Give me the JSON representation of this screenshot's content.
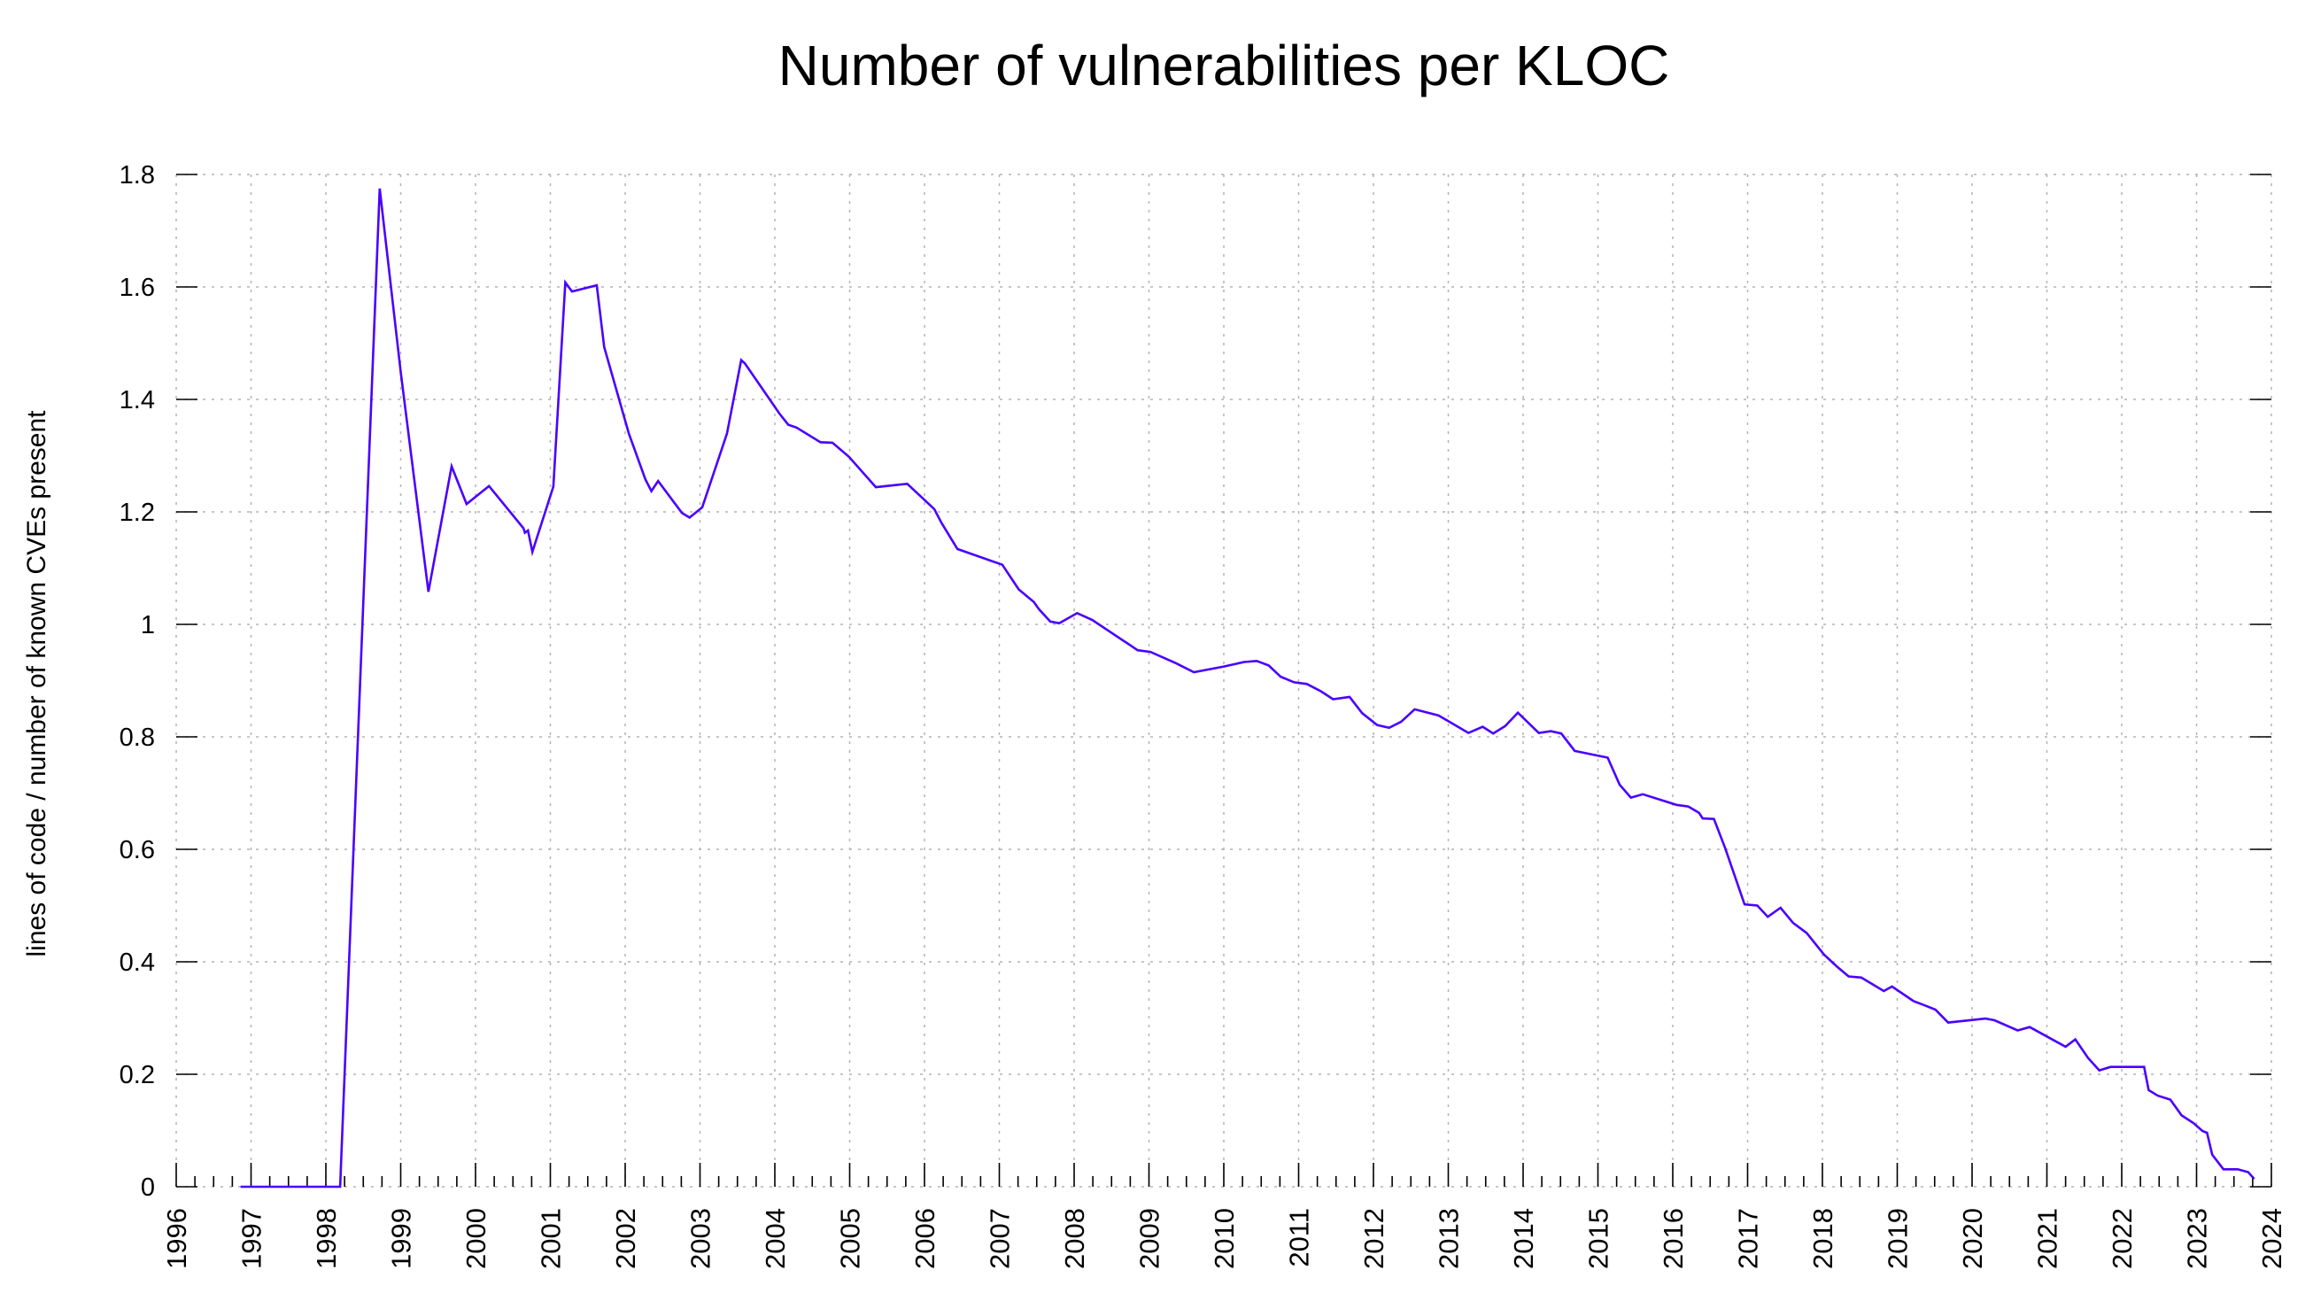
{
  "chart_data": {
    "type": "line",
    "title": "Number of vulnerabilities per KLOC",
    "xlabel": "",
    "ylabel": "lines of code / number of known CVEs present",
    "xlim": [
      1996,
      2024
    ],
    "ylim": [
      0,
      1.8
    ],
    "grid": true,
    "legend": "none",
    "x_ticks": [
      "1996",
      "1997",
      "1998",
      "1999",
      "2000",
      "2001",
      "2002",
      "2003",
      "2004",
      "2005",
      "2006",
      "2007",
      "2008",
      "2009",
      "2010",
      "2011",
      "2012",
      "2013",
      "2014",
      "2015",
      "2016",
      "2017",
      "2018",
      "2019",
      "2020",
      "2021",
      "2022",
      "2023",
      "2024"
    ],
    "x_minor_ticks_per_year": 4,
    "y_ticks": [
      "0",
      "0.2",
      "0.4",
      "0.6",
      "0.8",
      "1",
      "1.2",
      "1.4",
      "1.6",
      "1.8"
    ],
    "series": [
      {
        "name": "vulnerabilities per KLOC",
        "color": "#4a00ff",
        "points": [
          [
            1996.86,
            0
          ],
          [
            1998.19,
            0
          ],
          [
            1998.72,
            1.775
          ],
          [
            1999.0,
            1.449
          ],
          [
            1999.37,
            1.058
          ],
          [
            1999.68,
            1.281
          ],
          [
            1999.88,
            1.214
          ],
          [
            2000.18,
            1.246
          ],
          [
            2000.64,
            1.171
          ],
          [
            2000.66,
            1.163
          ],
          [
            2000.7,
            1.167
          ],
          [
            2000.76,
            1.129
          ],
          [
            2001.04,
            1.245
          ],
          [
            2001.2,
            1.608
          ],
          [
            2001.29,
            1.592
          ],
          [
            2001.62,
            1.603
          ],
          [
            2001.72,
            1.493
          ],
          [
            2002.05,
            1.339
          ],
          [
            2002.27,
            1.258
          ],
          [
            2002.35,
            1.237
          ],
          [
            2002.44,
            1.255
          ],
          [
            2002.76,
            1.198
          ],
          [
            2002.86,
            1.19
          ],
          [
            2003.03,
            1.208
          ],
          [
            2003.36,
            1.339
          ],
          [
            2003.55,
            1.47
          ],
          [
            2003.6,
            1.464
          ],
          [
            2004.06,
            1.375
          ],
          [
            2004.18,
            1.355
          ],
          [
            2004.29,
            1.35
          ],
          [
            2004.61,
            1.324
          ],
          [
            2004.77,
            1.323
          ],
          [
            2004.99,
            1.298
          ],
          [
            2005.35,
            1.244
          ],
          [
            2005.77,
            1.25
          ],
          [
            2006.13,
            1.205
          ],
          [
            2006.23,
            1.18
          ],
          [
            2006.44,
            1.134
          ],
          [
            2007.04,
            1.106
          ],
          [
            2007.26,
            1.062
          ],
          [
            2007.46,
            1.04
          ],
          [
            2007.53,
            1.027
          ],
          [
            2007.68,
            1.005
          ],
          [
            2007.8,
            1.002
          ],
          [
            2008.04,
            1.02
          ],
          [
            2008.24,
            1.008
          ],
          [
            2008.85,
            0.954
          ],
          [
            2009.02,
            0.951
          ],
          [
            2009.36,
            0.931
          ],
          [
            2009.6,
            0.915
          ],
          [
            2010.0,
            0.925
          ],
          [
            2010.27,
            0.933
          ],
          [
            2010.44,
            0.935
          ],
          [
            2010.6,
            0.927
          ],
          [
            2010.76,
            0.907
          ],
          [
            2010.94,
            0.897
          ],
          [
            2011.11,
            0.894
          ],
          [
            2011.3,
            0.881
          ],
          [
            2011.46,
            0.867
          ],
          [
            2011.68,
            0.871
          ],
          [
            2011.85,
            0.842
          ],
          [
            2012.05,
            0.821
          ],
          [
            2012.21,
            0.816
          ],
          [
            2012.37,
            0.827
          ],
          [
            2012.55,
            0.849
          ],
          [
            2012.87,
            0.838
          ],
          [
            2013.27,
            0.807
          ],
          [
            2013.46,
            0.818
          ],
          [
            2013.6,
            0.806
          ],
          [
            2013.76,
            0.819
          ],
          [
            2013.93,
            0.843
          ],
          [
            2014.21,
            0.807
          ],
          [
            2014.37,
            0.81
          ],
          [
            2014.51,
            0.806
          ],
          [
            2014.69,
            0.775
          ],
          [
            2015.13,
            0.763
          ],
          [
            2015.29,
            0.715
          ],
          [
            2015.44,
            0.692
          ],
          [
            2015.6,
            0.698
          ],
          [
            2016.05,
            0.679
          ],
          [
            2016.21,
            0.676
          ],
          [
            2016.35,
            0.665
          ],
          [
            2016.4,
            0.655
          ],
          [
            2016.55,
            0.654
          ],
          [
            2016.7,
            0.602
          ],
          [
            2016.96,
            0.502
          ],
          [
            2017.13,
            0.5
          ],
          [
            2017.27,
            0.48
          ],
          [
            2017.44,
            0.496
          ],
          [
            2017.61,
            0.469
          ],
          [
            2017.79,
            0.451
          ],
          [
            2018.02,
            0.413
          ],
          [
            2018.19,
            0.392
          ],
          [
            2018.35,
            0.374
          ],
          [
            2018.52,
            0.372
          ],
          [
            2018.82,
            0.348
          ],
          [
            2018.93,
            0.356
          ],
          [
            2019.22,
            0.33
          ],
          [
            2019.36,
            0.323
          ],
          [
            2019.51,
            0.315
          ],
          [
            2019.68,
            0.292
          ],
          [
            2020.18,
            0.299
          ],
          [
            2020.3,
            0.296
          ],
          [
            2020.61,
            0.278
          ],
          [
            2020.77,
            0.284
          ],
          [
            2021.25,
            0.249
          ],
          [
            2021.38,
            0.262
          ],
          [
            2021.55,
            0.229
          ],
          [
            2021.7,
            0.207
          ],
          [
            2021.85,
            0.213
          ],
          [
            2022.3,
            0.213
          ],
          [
            2022.36,
            0.172
          ],
          [
            2022.48,
            0.162
          ],
          [
            2022.65,
            0.155
          ],
          [
            2022.8,
            0.127
          ],
          [
            2022.96,
            0.113
          ],
          [
            2023.08,
            0.099
          ],
          [
            2023.14,
            0.096
          ],
          [
            2023.21,
            0.057
          ],
          [
            2023.36,
            0.031
          ],
          [
            2023.55,
            0.031
          ],
          [
            2023.69,
            0.026
          ],
          [
            2023.77,
            0.014
          ]
        ]
      }
    ]
  }
}
